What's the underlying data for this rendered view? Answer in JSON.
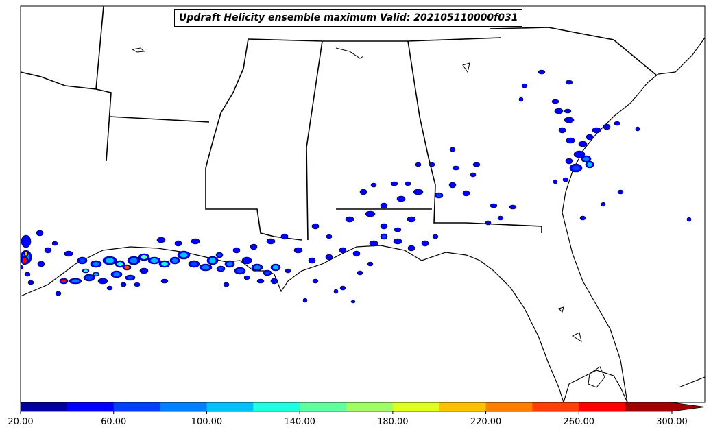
{
  "map": {
    "title": "Updraft Helicity ensemble maximum Valid: 202105110000f031",
    "region": "Southeastern United States and northern Gulf of Mexico",
    "background_color": "#ffffff",
    "boundary_color": "#000000"
  },
  "colorbar": {
    "tick_labels": [
      "20.00",
      "60.00",
      "100.00",
      "140.00",
      "180.00",
      "220.00",
      "260.00",
      "300.00"
    ],
    "levels": [
      20,
      40,
      60,
      80,
      100,
      120,
      140,
      160,
      180,
      200,
      220,
      240,
      260,
      280,
      300
    ],
    "colors": [
      "#00009f",
      "#0000ff",
      "#0040ff",
      "#0080ff",
      "#00c0ff",
      "#20ffe0",
      "#60ffa0",
      "#a0ff60",
      "#e0ff20",
      "#ffc000",
      "#ff8000",
      "#ff4000",
      "#ff0000",
      "#a00000"
    ],
    "extend": "max"
  }
}
